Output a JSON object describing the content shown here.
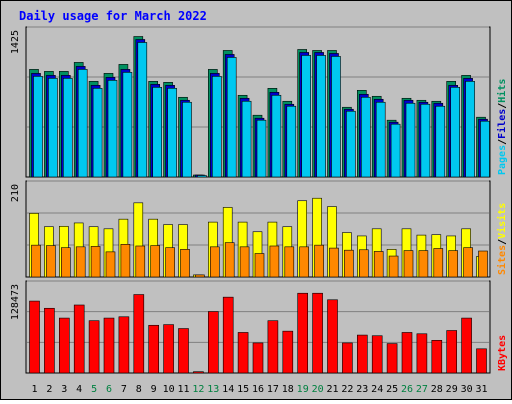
{
  "title": "Daily usage for March 2022",
  "colors": {
    "background": "#c0c0c0",
    "title": "#0000ff",
    "hits": "#009060",
    "files": "#0000cc",
    "pages": "#00c8f0",
    "visits": "#ffff00",
    "sites": "#ff8800",
    "kbytes": "#ff0000",
    "weekend_label": "#008040",
    "grid": "#808080"
  },
  "chart_data": [
    {
      "type": "bar",
      "panel": "top",
      "y_tick_label": "1425",
      "ylim": [
        0,
        1425
      ],
      "legend": [
        "Hits",
        "Files",
        "Pages"
      ],
      "legend_placement": "right",
      "grid": true,
      "categories": [
        "1",
        "2",
        "3",
        "4",
        "5",
        "6",
        "7",
        "8",
        "9",
        "10",
        "11",
        "12",
        "13",
        "14",
        "15",
        "16",
        "17",
        "18",
        "19",
        "20",
        "21",
        "22",
        "23",
        "24",
        "25",
        "26",
        "27",
        "28",
        "29",
        "30",
        "31"
      ],
      "series": [
        {
          "name": "Hits",
          "values": [
            1080,
            1060,
            1060,
            1150,
            960,
            1040,
            1130,
            1410,
            960,
            950,
            800,
            20,
            1080,
            1270,
            820,
            620,
            890,
            760,
            1280,
            1270,
            1270,
            700,
            870,
            810,
            570,
            790,
            770,
            760,
            960,
            1020,
            600
          ]
        },
        {
          "name": "Files",
          "values": [
            1040,
            1020,
            1020,
            1110,
            920,
            1000,
            1080,
            1380,
            930,
            920,
            770,
            20,
            1040,
            1230,
            790,
            590,
            850,
            730,
            1250,
            1250,
            1240,
            680,
            830,
            780,
            550,
            770,
            750,
            740,
            920,
            990,
            580
          ]
        },
        {
          "name": "Pages",
          "values": [
            1010,
            990,
            990,
            1080,
            890,
            970,
            1050,
            1350,
            900,
            890,
            750,
            15,
            1010,
            1200,
            760,
            570,
            820,
            710,
            1220,
            1220,
            1210,
            660,
            800,
            750,
            530,
            740,
            730,
            710,
            900,
            960,
            560
          ]
        }
      ]
    },
    {
      "type": "bar",
      "panel": "middle",
      "y_tick_label": "210",
      "ylim": [
        0,
        210
      ],
      "legend": [
        "Visits",
        "Sites"
      ],
      "legend_placement": "right",
      "grid": true,
      "categories": [
        "1",
        "2",
        "3",
        "4",
        "5",
        "6",
        "7",
        "8",
        "9",
        "10",
        "11",
        "12",
        "13",
        "14",
        "15",
        "16",
        "17",
        "18",
        "19",
        "20",
        "21",
        "22",
        "23",
        "24",
        "25",
        "26",
        "27",
        "28",
        "29",
        "30",
        "31"
      ],
      "series": [
        {
          "name": "Visits",
          "values": [
            152,
            120,
            121,
            129,
            120,
            115,
            138,
            177,
            138,
            125,
            125,
            5,
            131,
            166,
            131,
            108,
            131,
            120,
            182,
            188,
            168,
            106,
            98,
            115,
            66,
            115,
            100,
            101,
            98,
            115,
            49
          ]
        },
        {
          "name": "Sites",
          "values": [
            76,
            75,
            70,
            72,
            73,
            60,
            78,
            74,
            75,
            70,
            66,
            5,
            72,
            82,
            72,
            56,
            74,
            72,
            72,
            76,
            69,
            64,
            65,
            61,
            50,
            63,
            63,
            68,
            63,
            70,
            62
          ]
        }
      ]
    },
    {
      "type": "bar",
      "panel": "bottom",
      "y_tick_label": "128473",
      "ylim": [
        0,
        128473
      ],
      "legend": [
        "KBytes"
      ],
      "legend_placement": "right",
      "grid": true,
      "categories": [
        "1",
        "2",
        "3",
        "4",
        "5",
        "6",
        "7",
        "8",
        "9",
        "10",
        "11",
        "12",
        "13",
        "14",
        "15",
        "16",
        "17",
        "18",
        "19",
        "20",
        "21",
        "22",
        "23",
        "24",
        "25",
        "26",
        "27",
        "28",
        "29",
        "30",
        "31"
      ],
      "series": [
        {
          "name": "KBytes",
          "values": [
            110000,
            99000,
            84000,
            104000,
            80000,
            84000,
            86000,
            120000,
            73000,
            74000,
            68000,
            2000,
            94000,
            116000,
            62000,
            46000,
            80000,
            64000,
            122000,
            122000,
            112000,
            46000,
            58000,
            57000,
            45000,
            62000,
            60000,
            50000,
            65000,
            84000,
            37000
          ]
        }
      ]
    }
  ],
  "weekend_days": [
    "5",
    "6",
    "12",
    "13",
    "19",
    "20",
    "26",
    "27"
  ]
}
